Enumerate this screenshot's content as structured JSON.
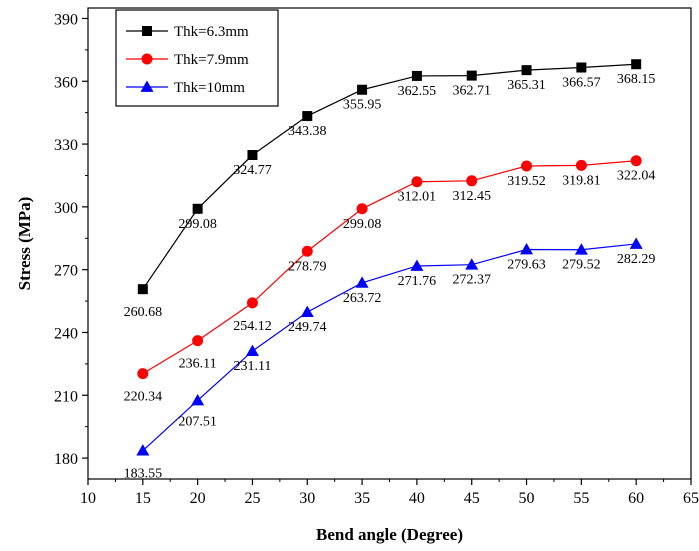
{
  "chart_data": {
    "type": "line",
    "xlabel": "Bend angle (Degree)",
    "ylabel": "Stress (MPa)",
    "xlim": [
      10,
      65
    ],
    "ylim": [
      170,
      395
    ],
    "x_ticks": [
      10,
      15,
      20,
      25,
      30,
      35,
      40,
      45,
      50,
      55,
      60,
      65
    ],
    "y_ticks": [
      180,
      210,
      240,
      270,
      300,
      330,
      360,
      390
    ],
    "x": [
      15,
      20,
      25,
      30,
      35,
      40,
      45,
      50,
      55,
      60
    ],
    "grid": false,
    "legend_position": "top-left",
    "series": [
      {
        "name": "Thk=6.3mm",
        "color": "#000000",
        "marker": "square",
        "values": [
          260.68,
          299.08,
          324.77,
          343.38,
          355.95,
          362.55,
          362.71,
          365.31,
          366.57,
          368.15
        ],
        "labels": [
          "260.68",
          "299.08",
          "324.77",
          "343.38",
          "355.95",
          "362.55",
          "362.71",
          "365.31",
          "366.57",
          "368.15"
        ]
      },
      {
        "name": "Thk=7.9mm",
        "color": "#ff0000",
        "marker": "circle",
        "values": [
          220.34,
          236.11,
          254.12,
          278.79,
          299.08,
          312.01,
          312.45,
          319.52,
          319.81,
          322.04
        ],
        "labels": [
          "220.34",
          "236.11",
          "254.12",
          "278.79",
          "299.08",
          "312.01",
          "312.45",
          "319.52",
          "319.81",
          "322.04"
        ]
      },
      {
        "name": "Thk=10mm",
        "color": "#0000ff",
        "marker": "triangle",
        "values": [
          183.55,
          207.51,
          231.11,
          249.74,
          263.72,
          271.76,
          272.37,
          279.63,
          279.52,
          282.29
        ],
        "labels": [
          "183.55",
          "207.51",
          "231.11",
          "249.74",
          "263.72",
          "271.76",
          "272.37",
          "279.63",
          "279.52",
          "282.29"
        ]
      }
    ]
  }
}
